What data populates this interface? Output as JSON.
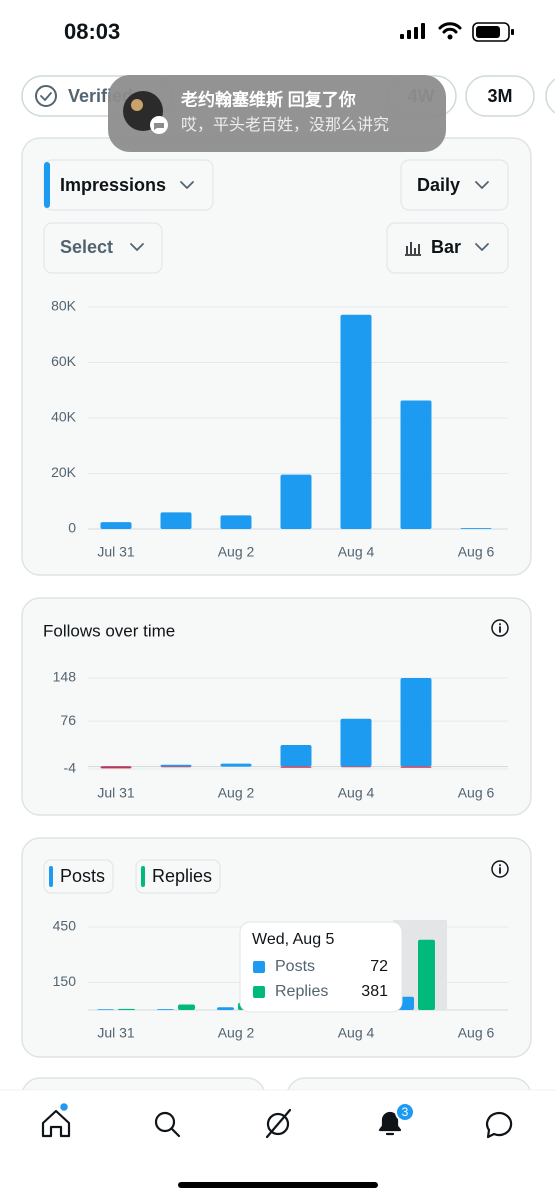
{
  "status_bar": {
    "time": "08:03"
  },
  "notification": {
    "title": "老约翰塞维斯 回复了你",
    "message": "哎，平头老百姓，没那么讲究"
  },
  "filters": {
    "chips": [
      "Verified",
      "4W",
      "3M"
    ]
  },
  "controls": {
    "metric": "Impressions",
    "interval": "Daily",
    "select": "Select",
    "chart_type": "Bar"
  },
  "chart_data": [
    {
      "type": "bar",
      "categories": [
        "Jul 31",
        null,
        "Aug 2",
        null,
        "Aug 4",
        null,
        "Aug 6"
      ],
      "series": [
        {
          "color": "#1d9bf0",
          "values": [
            2500,
            6000,
            4900,
            19600,
            77200,
            46300,
            300
          ]
        }
      ],
      "ylim": [
        0,
        80000
      ],
      "yticks": [
        0,
        {
          "value": 20000,
          "label": "20K"
        },
        {
          "value": 40000,
          "label": "40K"
        },
        {
          "value": 60000,
          "label": "60K"
        },
        {
          "value": 80000,
          "label": "80K"
        }
      ],
      "grid": true
    },
    {
      "type": "bar",
      "title": "Follows over time",
      "categories": [
        "Jul 31",
        null,
        "Aug 2",
        null,
        "Aug 4",
        null,
        "Aug 6"
      ],
      "series": [
        {
          "color": "#1d9bf0",
          "values": [
            1,
            3,
            5,
            36,
            80,
            148,
            0
          ]
        },
        {
          "color": "#f4212e",
          "values": [
            -3,
            -1,
            0,
            -2,
            -1,
            -2,
            0
          ]
        }
      ],
      "ylim": [
        -4,
        148
      ],
      "yticks": [
        -4,
        76,
        148
      ],
      "grid": true
    },
    {
      "type": "grouped_bar",
      "categories": [
        "Jul 31",
        null,
        "Aug 2",
        null,
        "Aug 4",
        null,
        "Aug 6"
      ],
      "series": [
        {
          "name": "Posts",
          "color": "#1d9bf0",
          "values": [
            4,
            5,
            15,
            10,
            10,
            72,
            0
          ]
        },
        {
          "name": "Replies",
          "color": "#00ba7c",
          "values": [
            6,
            30,
            40,
            20,
            20,
            381,
            0
          ]
        }
      ],
      "ylim": [
        0,
        450
      ],
      "yticks": [
        150,
        450
      ],
      "grid": true,
      "tooltip": {
        "title": "Wed, Aug 5"
      }
    }
  ],
  "nav": {
    "badge": "3"
  }
}
